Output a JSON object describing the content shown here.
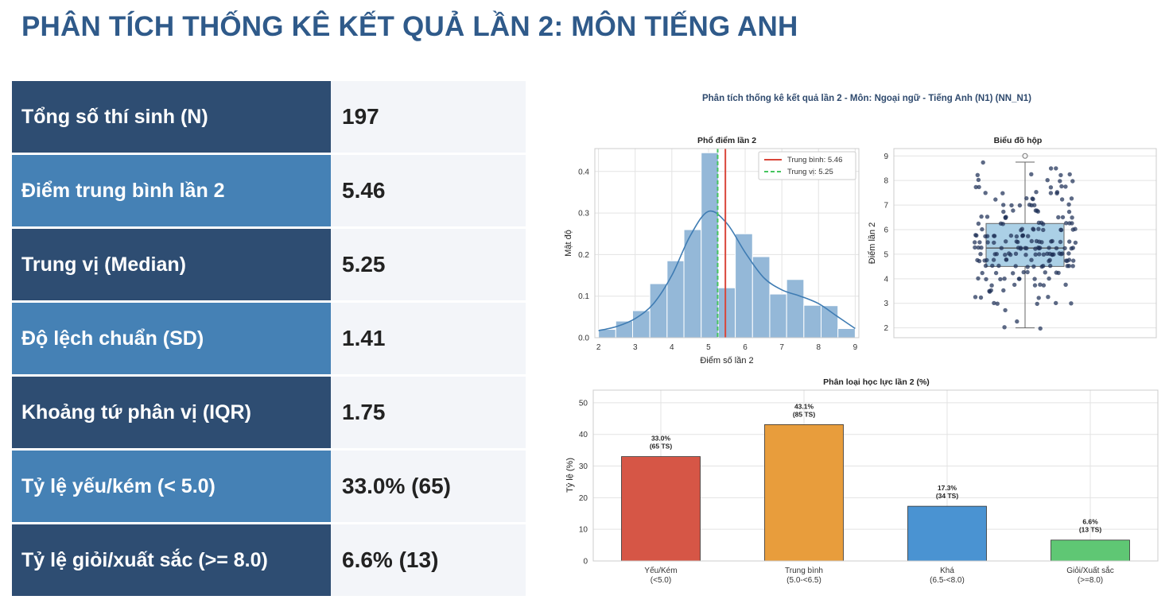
{
  "title": "PHÂN TÍCH THỐNG KÊ KẾT QUẢ LẦN 2: MÔN TIẾNG ANH",
  "stats": [
    {
      "label": "Tổng số thí sinh (N)",
      "value": "197",
      "style": "dark"
    },
    {
      "label": "Điểm trung bình lần 2",
      "value": "5.46",
      "style": "light"
    },
    {
      "label": "Trung vị (Median)",
      "value": "5.25",
      "style": "dark"
    },
    {
      "label": "Độ lệch chuẩn (SD)",
      "value": "1.41",
      "style": "light"
    },
    {
      "label": "Khoảng tứ phân vị (IQR)",
      "value": "1.75",
      "style": "dark"
    },
    {
      "label": "Tỷ lệ yếu/kém (< 5.0)",
      "value": "33.0% (65)",
      "style": "light"
    },
    {
      "label": "Tỷ lệ giỏi/xuất sắc (>= 8.0)",
      "value": "6.6% (13)",
      "style": "dark"
    }
  ],
  "colors": {
    "title": "#2f5a8a",
    "dark_row": "#2e4d72",
    "light_row": "#4581b5",
    "value_bg": "#f3f5f9",
    "hist_bar": "#94b8d8",
    "kde": "#3f7cb3",
    "mean_line": "#d9463a",
    "median_line": "#45c45f",
    "box_fill": "#abd0e6",
    "points": "#1f3057"
  },
  "figure_title": "Phân tích thống kê kết quả lần 2 - Môn: Ngoại ngữ - Tiếng Anh (N1) (NN_N1)",
  "chart_data": [
    {
      "type": "bar",
      "subtype": "histogram-with-kde",
      "title": "Phổ điểm lần 2",
      "xlabel": "Điểm số lần 2",
      "ylabel": "Mật độ",
      "xlim": [
        1.9,
        9.1
      ],
      "ylim": [
        0,
        0.455
      ],
      "xticks": [
        "2",
        "3",
        "4",
        "5",
        "6",
        "7",
        "8",
        "9"
      ],
      "yticks": [
        "0.0",
        "0.1",
        "0.2",
        "0.3",
        "0.4"
      ],
      "bins": [
        {
          "x0": 2.0,
          "x1": 2.47,
          "density": 0.02
        },
        {
          "x0": 2.47,
          "x1": 2.93,
          "density": 0.04
        },
        {
          "x0": 2.93,
          "x1": 3.4,
          "density": 0.065
        },
        {
          "x0": 3.4,
          "x1": 3.87,
          "density": 0.13
        },
        {
          "x0": 3.87,
          "x1": 4.33,
          "density": 0.185
        },
        {
          "x0": 4.33,
          "x1": 4.8,
          "density": 0.26
        },
        {
          "x0": 4.8,
          "x1": 5.27,
          "density": 0.445
        },
        {
          "x0": 5.27,
          "x1": 5.73,
          "density": 0.12
        },
        {
          "x0": 5.73,
          "x1": 6.2,
          "density": 0.25
        },
        {
          "x0": 6.2,
          "x1": 6.67,
          "density": 0.195
        },
        {
          "x0": 6.67,
          "x1": 7.13,
          "density": 0.105
        },
        {
          "x0": 7.13,
          "x1": 7.6,
          "density": 0.14
        },
        {
          "x0": 7.6,
          "x1": 8.07,
          "density": 0.078
        },
        {
          "x0": 8.07,
          "x1": 8.53,
          "density": 0.077
        },
        {
          "x0": 8.53,
          "x1": 9.0,
          "density": 0.022
        }
      ],
      "kde": {
        "x": [
          2.0,
          2.5,
          3.0,
          3.5,
          4.0,
          4.5,
          5.0,
          5.5,
          6.0,
          6.5,
          7.0,
          7.5,
          8.0,
          8.5,
          9.0
        ],
        "y": [
          0.017,
          0.027,
          0.046,
          0.082,
          0.15,
          0.245,
          0.304,
          0.275,
          0.205,
          0.145,
          0.115,
          0.1,
          0.082,
          0.052,
          0.022
        ]
      },
      "mean": 5.46,
      "median": 5.25,
      "legend": {
        "position": "upper right",
        "entries": [
          "Trung bình: 5.46",
          "Trung vị: 5.25"
        ]
      }
    },
    {
      "type": "scatter",
      "subtype": "boxplot-with-strip",
      "title": "Biểu đồ hộp",
      "ylabel": "Điểm lần 2",
      "ylim": [
        1.6,
        9.3
      ],
      "yticks": [
        "2",
        "3",
        "4",
        "5",
        "6",
        "7",
        "8",
        "9"
      ],
      "box": {
        "q1": 4.5,
        "median": 5.25,
        "q3": 6.25,
        "whisker_low": 2.0,
        "whisker_high": 8.75,
        "outliers": [
          9.0
        ]
      },
      "points_n": 197
    },
    {
      "type": "bar",
      "title": "Phân loại học lực lần 2 (%)",
      "ylabel": "Tỷ lệ (%)",
      "ylim": [
        0,
        54
      ],
      "yticks": [
        "0",
        "10",
        "20",
        "30",
        "40",
        "50"
      ],
      "categories": [
        {
          "line1": "Yếu/Kém",
          "line2": "(<5.0)"
        },
        {
          "line1": "Trung bình",
          "line2": "(5.0-<6.5)"
        },
        {
          "line1": "Khá",
          "line2": "(6.5-<8.0)"
        },
        {
          "line1": "Giỏi/Xuất sắc",
          "line2": "(>=8.0)"
        }
      ],
      "values": [
        33.0,
        43.1,
        17.3,
        6.6
      ],
      "labels": [
        {
          "pct": "33.0%",
          "count": "(65 TS)"
        },
        {
          "pct": "43.1%",
          "count": "(85 TS)"
        },
        {
          "pct": "17.3%",
          "count": "(34 TS)"
        },
        {
          "pct": "6.6%",
          "count": "(13 TS)"
        }
      ],
      "colors": [
        "#d65646",
        "#e89d3c",
        "#4a93d2",
        "#5fc774"
      ]
    }
  ]
}
